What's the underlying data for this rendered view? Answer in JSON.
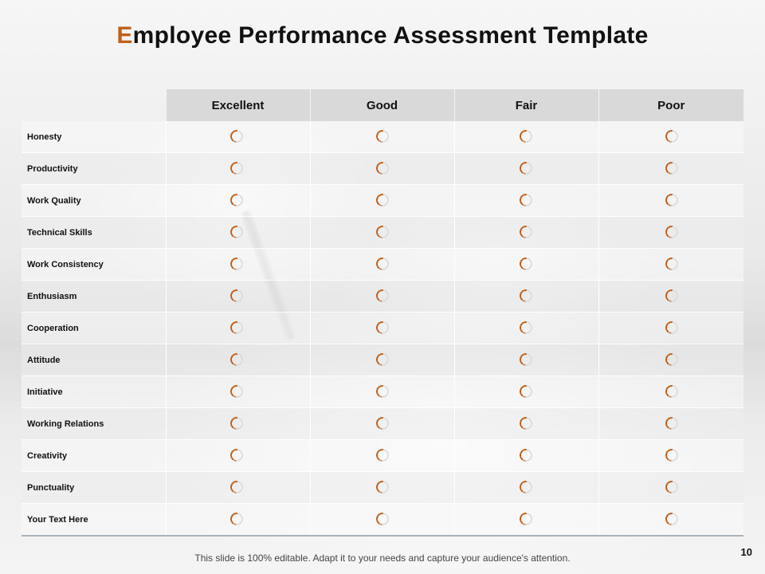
{
  "slide": {
    "title_first_letter": "E",
    "title_rest": "mployee Performance Assessment Template",
    "footer_text": "This slide is 100% editable. Adapt it to your needs and capture your audience's attention.",
    "page_number": "10"
  },
  "table": {
    "columns": [
      "Excellent",
      "Good",
      "Fair",
      "Poor"
    ],
    "rows": [
      "Honesty",
      "Productivity",
      "Work Quality",
      "Technical  Skills",
      "Work Consistency",
      "Enthusiasm",
      "Cooperation",
      "Attitude",
      "Initiative",
      "Working Relations",
      "Creativity",
      "Punctuality",
      "Your  Text Here"
    ]
  },
  "colors": {
    "accent": "#c0601a",
    "radio_light": "#d9d9d9"
  },
  "icons": {
    "rating_option": "radio-button-icon"
  }
}
